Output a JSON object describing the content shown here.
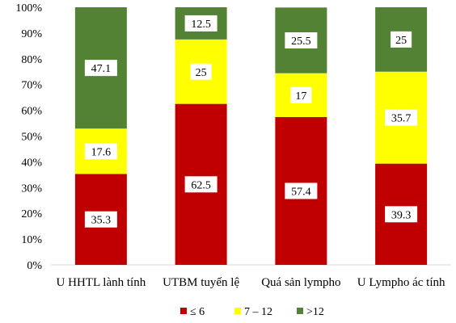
{
  "chart_data": {
    "type": "bar",
    "stacked": true,
    "percent": true,
    "categories": [
      "U HHTL lành tính",
      "UTBM tuyến lệ",
      "Quá sản lympho",
      "U Lympho ác tính"
    ],
    "series": [
      {
        "name": "≤ 6",
        "color": "#c00000",
        "values": [
          35.3,
          62.5,
          57.4,
          39.3
        ]
      },
      {
        "name": "7 – 12",
        "color": "#ffff00",
        "values": [
          17.6,
          25,
          17,
          35.7
        ]
      },
      {
        "name": ">12",
        "color": "#548235",
        "values": [
          47.1,
          12.5,
          25.5,
          25
        ]
      }
    ],
    "ylim": [
      0,
      100
    ],
    "yticks": [
      "0%",
      "10%",
      "20%",
      "30%",
      "40%",
      "50%",
      "60%",
      "70%",
      "80%",
      "90%",
      "100%"
    ],
    "legend_position": "bottom",
    "grid": false
  }
}
